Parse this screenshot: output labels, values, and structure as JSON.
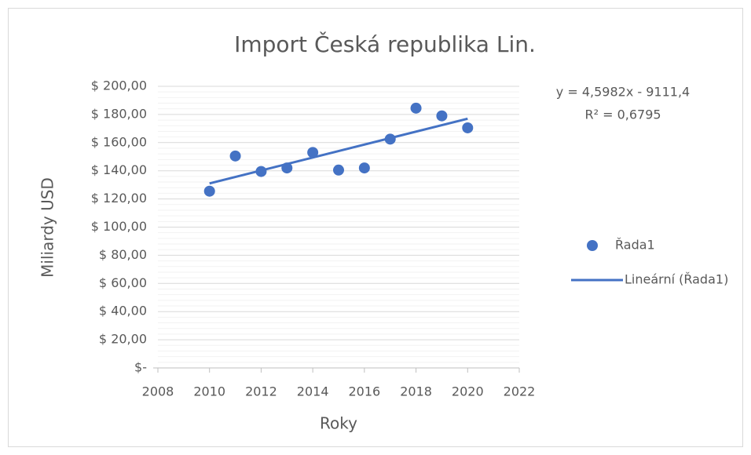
{
  "chart_data": {
    "type": "scatter",
    "title": "Import Česká republika Lin.",
    "x_label": "Roky",
    "y_label": "Miliardy USD",
    "x": [
      2010,
      2011,
      2012,
      2013,
      2014,
      2015,
      2016,
      2017,
      2018,
      2019,
      2020
    ],
    "series": [
      {
        "name": "Řada1",
        "color": "#4472c4",
        "values": [
          125.5,
          150.5,
          139.5,
          142.0,
          153.0,
          140.5,
          142.0,
          162.5,
          184.5,
          179.0,
          170.5
        ]
      }
    ],
    "trendline": {
      "name": "Lineární (Řada1)",
      "color": "#4472c4",
      "x": [
        2010,
        2020
      ],
      "values": [
        131.0,
        177.0
      ]
    },
    "annotations": [
      "y = 4,5982x - 9111,4",
      "R² = 0,6795"
    ],
    "xlim": [
      2008,
      2022
    ],
    "xticks": [
      2008,
      2010,
      2012,
      2014,
      2016,
      2018,
      2020,
      2022
    ],
    "ylim": [
      0,
      200
    ],
    "yticks": [
      {
        "value": 0,
        "label": "$-"
      },
      {
        "value": 20,
        "label": "$ 20,00"
      },
      {
        "value": 40,
        "label": "$ 40,00"
      },
      {
        "value": 60,
        "label": "$ 60,00"
      },
      {
        "value": 80,
        "label": "$ 80,00"
      },
      {
        "value": 100,
        "label": "$ 100,00"
      },
      {
        "value": 120,
        "label": "$ 120,00"
      },
      {
        "value": 140,
        "label": "$ 140,00"
      },
      {
        "value": 160,
        "label": "$ 160,00"
      },
      {
        "value": 180,
        "label": "$ 180,00"
      },
      {
        "value": 200,
        "label": "$ 200,00"
      }
    ],
    "grid": true,
    "minor_grid": true,
    "legend": "right"
  }
}
